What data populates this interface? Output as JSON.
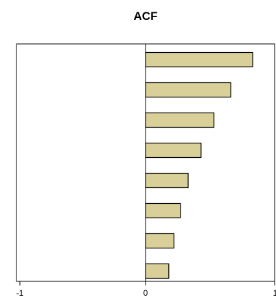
{
  "chart_data": {
    "type": "bar",
    "orientation": "horizontal",
    "title": "ACF",
    "xlabel": "",
    "ylabel": "",
    "xlim": [
      -1,
      1
    ],
    "x_tick_labels": [
      "-1",
      "0",
      "1"
    ],
    "values": [
      0.83,
      0.66,
      0.53,
      0.43,
      0.33,
      0.27,
      0.22,
      0.18
    ],
    "grid": false,
    "legend": "none"
  },
  "colors": {
    "bar_fill": "#d9cf98",
    "bar_stroke": "#000000",
    "axis": "#000000",
    "background": "#ffffff"
  }
}
